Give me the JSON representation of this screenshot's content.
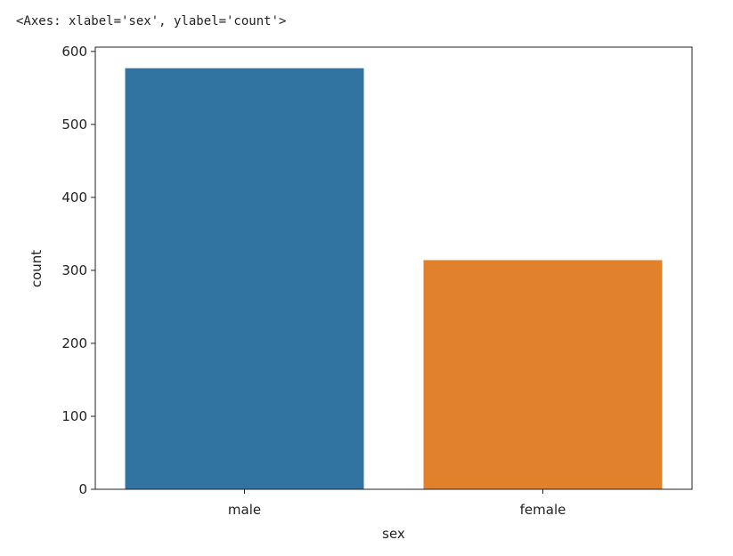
{
  "chart_data": {
    "type": "bar",
    "annotation": "<Axes: xlabel='sex', ylabel='count'>",
    "xlabel": "sex",
    "ylabel": "count",
    "categories": [
      "male",
      "female"
    ],
    "values": [
      577,
      314
    ],
    "colors": [
      "#3274a1",
      "#e1812c"
    ],
    "ylim": [
      0,
      605.85
    ],
    "yticks": [
      0,
      100,
      200,
      300,
      400,
      500,
      600
    ],
    "grid": false
  }
}
